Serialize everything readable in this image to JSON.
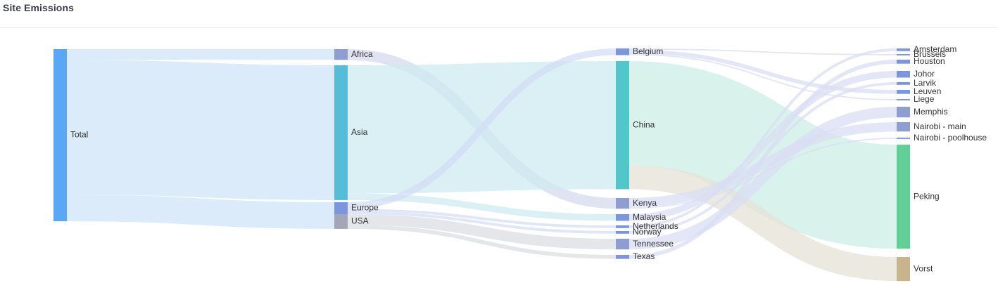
{
  "header": {
    "title": "Site Emissions"
  },
  "chart_data": {
    "type": "sankey",
    "title": "Site Emissions",
    "nodes": [
      {
        "id": "total",
        "label": "Total",
        "color": "#5aa8f5"
      },
      {
        "id": "africa",
        "label": "Africa",
        "color": "#8f9ed0"
      },
      {
        "id": "asia",
        "label": "Asia",
        "color": "#56bcd8"
      },
      {
        "id": "europe",
        "label": "Europe",
        "color": "#7b96df"
      },
      {
        "id": "usa",
        "label": "USA",
        "color": "#a3a6b4"
      },
      {
        "id": "belgium",
        "label": "Belgium",
        "color": "#7b96df"
      },
      {
        "id": "china",
        "label": "China",
        "color": "#52c7c9"
      },
      {
        "id": "kenya",
        "label": "Kenya",
        "color": "#8f9ed0"
      },
      {
        "id": "malaysia",
        "label": "Malaysia",
        "color": "#7b96df"
      },
      {
        "id": "netherlands",
        "label": "Netherlands",
        "color": "#7b96df"
      },
      {
        "id": "norway",
        "label": "Norway",
        "color": "#7b96df"
      },
      {
        "id": "tennessee",
        "label": "Tennessee",
        "color": "#8f9ed0"
      },
      {
        "id": "texas",
        "label": "Texas",
        "color": "#7b96df"
      },
      {
        "id": "amsterdam",
        "label": "Amsterdam",
        "color": "#7b96df"
      },
      {
        "id": "brussels",
        "label": "Brussels",
        "color": "#7b96df"
      },
      {
        "id": "houston",
        "label": "Houston",
        "color": "#7b96df"
      },
      {
        "id": "johor",
        "label": "Johor",
        "color": "#7b96df"
      },
      {
        "id": "larvik",
        "label": "Larvik",
        "color": "#7b96df"
      },
      {
        "id": "leuven",
        "label": "Leuven",
        "color": "#7b96df"
      },
      {
        "id": "liege",
        "label": "Liege",
        "color": "#7b96df"
      },
      {
        "id": "memphis",
        "label": "Memphis",
        "color": "#8f9ed0"
      },
      {
        "id": "nairobi_main",
        "label": "Nairobi - main",
        "color": "#8f9ed0"
      },
      {
        "id": "nairobi_pool",
        "label": "Nairobi - poolhouse",
        "color": "#7b96df"
      },
      {
        "id": "peking",
        "label": "Peking",
        "color": "#62cf97"
      },
      {
        "id": "vorst",
        "label": "Vorst",
        "color": "#c7b48d"
      }
    ],
    "links": [
      {
        "source": "total",
        "target": "africa",
        "value": 8
      },
      {
        "source": "total",
        "target": "asia",
        "value": 101
      },
      {
        "source": "total",
        "target": "europe",
        "value": 9
      },
      {
        "source": "total",
        "target": "usa",
        "value": 11
      },
      {
        "source": "africa",
        "target": "kenya",
        "value": 8
      },
      {
        "source": "asia",
        "target": "china",
        "value": 96
      },
      {
        "source": "asia",
        "target": "malaysia",
        "value": 5
      },
      {
        "source": "europe",
        "target": "belgium",
        "value": 5
      },
      {
        "source": "europe",
        "target": "netherlands",
        "value": 2
      },
      {
        "source": "europe",
        "target": "norway",
        "value": 2
      },
      {
        "source": "usa",
        "target": "tennessee",
        "value": 8
      },
      {
        "source": "usa",
        "target": "texas",
        "value": 3
      },
      {
        "source": "belgium",
        "target": "brussels",
        "value": 1
      },
      {
        "source": "belgium",
        "target": "leuven",
        "value": 3
      },
      {
        "source": "belgium",
        "target": "liege",
        "value": 1
      },
      {
        "source": "china",
        "target": "peking",
        "value": 78
      },
      {
        "source": "china",
        "target": "vorst",
        "value": 18
      },
      {
        "source": "kenya",
        "target": "nairobi_main",
        "value": 7
      },
      {
        "source": "kenya",
        "target": "nairobi_pool",
        "value": 1
      },
      {
        "source": "malaysia",
        "target": "johor",
        "value": 5
      },
      {
        "source": "netherlands",
        "target": "amsterdam",
        "value": 2
      },
      {
        "source": "norway",
        "target": "larvik",
        "value": 2
      },
      {
        "source": "tennessee",
        "target": "memphis",
        "value": 8
      },
      {
        "source": "texas",
        "target": "houston",
        "value": 3
      }
    ],
    "link_colors": {
      "total": "#cfe4f8",
      "africa": "#d6daec",
      "asia": "#cdebf2",
      "europe": "#d3ddf4",
      "usa": "#dcdde3",
      "china": "#cdeee6",
      "china_vorst": "#e4e2d6",
      "default": "#d9def3"
    }
  }
}
